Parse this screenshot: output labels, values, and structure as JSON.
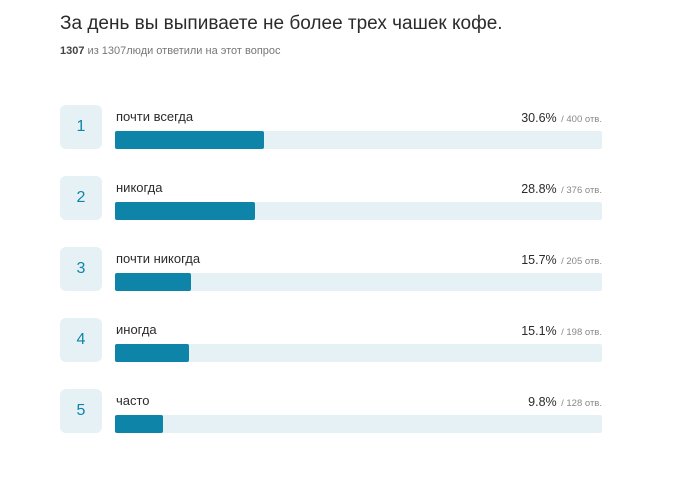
{
  "question": {
    "title": "За день вы выпиваете не более трех чашек кофе.",
    "answered_count": "1307",
    "answered_text": "из 1307люди ответили на этот вопрос"
  },
  "colors": {
    "accent": "#0e85a8",
    "track": "#e6f1f6"
  },
  "answers": [
    {
      "rank": "1",
      "label": "почти всегда",
      "percent": "30.6%",
      "count": "/ 400 отв.",
      "share": 0.306
    },
    {
      "rank": "2",
      "label": "никогда",
      "percent": "28.8%",
      "count": "/ 376 отв.",
      "share": 0.288
    },
    {
      "rank": "3",
      "label": "почти никогда",
      "percent": "15.7%",
      "count": "/ 205 отв.",
      "share": 0.157
    },
    {
      "rank": "4",
      "label": "иногда",
      "percent": "15.1%",
      "count": "/ 198 отв.",
      "share": 0.151
    },
    {
      "rank": "5",
      "label": "часто",
      "percent": "9.8%",
      "count": "/ 128 отв.",
      "share": 0.098
    }
  ]
}
